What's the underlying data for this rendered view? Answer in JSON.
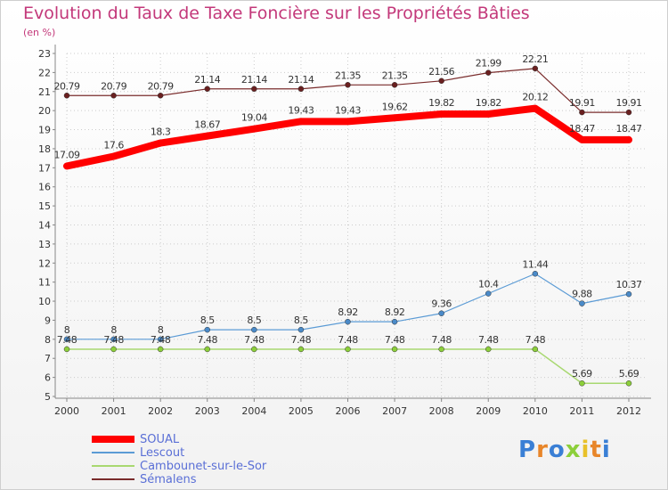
{
  "title": "Evolution du Taux de Taxe Foncière sur les Propriétés Bâties",
  "subtitle": "(en %)",
  "logo": {
    "text": "Proxiti"
  },
  "colors": {
    "title": "#c3387a",
    "axis": "#888888",
    "grid": "#cccccc"
  },
  "chart_data": {
    "type": "line",
    "x": [
      "2000",
      "2001",
      "2002",
      "2003",
      "2004",
      "2005",
      "2006",
      "2007",
      "2008",
      "2009",
      "2010",
      "2011",
      "2012"
    ],
    "ylim": [
      5,
      23
    ],
    "yticks": [
      "5",
      "6",
      "7",
      "8",
      "9",
      "10",
      "11",
      "12",
      "13",
      "14",
      "15",
      "16",
      "17",
      "18",
      "19",
      "20",
      "21",
      "22",
      "23"
    ],
    "grid": true,
    "legend_position": "bottom-left",
    "series": [
      {
        "name": "SOUAL",
        "color": "#ff0000",
        "width": 8,
        "marker": false,
        "values": [
          17.09,
          17.6,
          18.3,
          18.67,
          19.04,
          19.43,
          19.43,
          19.62,
          19.82,
          19.82,
          20.12,
          18.47,
          18.47
        ],
        "labels": [
          "17.09",
          "17.6",
          "18.3",
          "18.67",
          "19.04",
          "19.43",
          "19.43",
          "19.62",
          "19.82",
          "19.82",
          "20.12",
          "18.47",
          "18.47"
        ]
      },
      {
        "name": "Lescout",
        "color": "#5b9bd5",
        "width": 1.2,
        "marker": true,
        "marker_color": "#4a8ac8",
        "values": [
          8,
          8,
          8,
          8.5,
          8.5,
          8.5,
          8.92,
          8.92,
          9.36,
          10.4,
          11.44,
          9.88,
          10.37
        ],
        "labels": [
          "8",
          "8",
          "8",
          "8.5",
          "8.5",
          "8.5",
          "8.92",
          "8.92",
          "9.36",
          "10.4",
          "11.44",
          "9.88",
          "10.37"
        ]
      },
      {
        "name": "Cambounet-sur-le-Sor",
        "color": "#a8d870",
        "width": 1.5,
        "marker": true,
        "marker_color": "#8ccf3a",
        "values": [
          7.48,
          7.48,
          7.48,
          7.48,
          7.48,
          7.48,
          7.48,
          7.48,
          7.48,
          7.48,
          7.48,
          5.69,
          5.69
        ],
        "labels": [
          "7.48",
          "7.48",
          "7.48",
          "7.48",
          "7.48",
          "7.48",
          "7.48",
          "7.48",
          "7.48",
          "7.48",
          "7.48",
          "5.69",
          "5.69"
        ]
      },
      {
        "name": "Sémalens",
        "color": "#7a2c2c",
        "width": 1.2,
        "marker": true,
        "marker_color": "#6a2020",
        "values": [
          20.79,
          20.79,
          20.79,
          21.14,
          21.14,
          21.14,
          21.35,
          21.35,
          21.56,
          21.99,
          22.21,
          19.91,
          19.91
        ],
        "labels": [
          "20.79",
          "20.79",
          "20.79",
          "21.14",
          "21.14",
          "21.14",
          "21.35",
          "21.35",
          "21.56",
          "21.99",
          "22.21",
          "19.91",
          "19.91"
        ]
      }
    ]
  }
}
